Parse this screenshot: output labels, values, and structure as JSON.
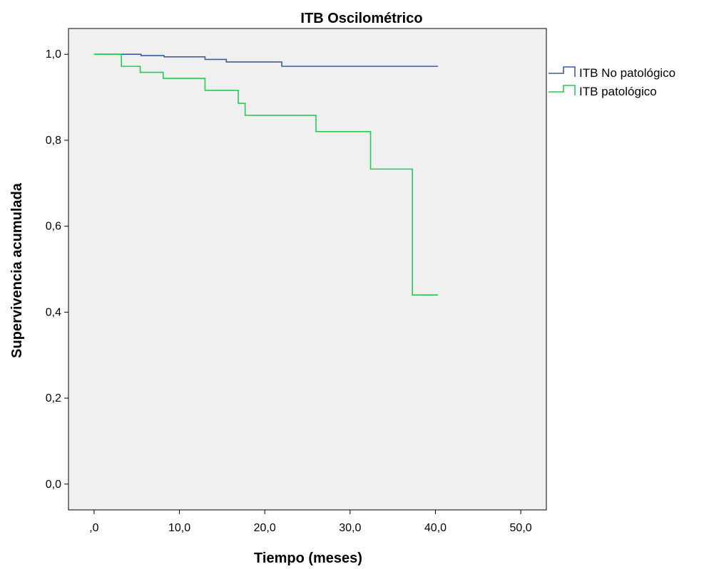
{
  "chart_data": {
    "type": "line",
    "step": true,
    "title": "ITB Oscilométrico",
    "xlabel": "Tiempo (meses)",
    "ylabel": "Supervivencia acumulada",
    "xlim": [
      -3,
      53
    ],
    "ylim": [
      -0.06,
      1.06
    ],
    "xticks": [
      0,
      10,
      20,
      30,
      40,
      50
    ],
    "xtick_labels": [
      ",0",
      "10,0",
      "20,0",
      "30,0",
      "40,0",
      "50,0"
    ],
    "yticks": [
      0,
      0.2,
      0.4,
      0.6,
      0.8,
      1.0
    ],
    "ytick_labels": [
      "0,0",
      "0,2",
      "0,4",
      "0,6",
      "0,8",
      "1,0"
    ],
    "grid": false,
    "legend_position": "right",
    "plot_background": "#f0f0f0",
    "series": [
      {
        "name": "ITB No patológico",
        "color": "#3a5ba8",
        "x": [
          0,
          5.5,
          8.2,
          13.0,
          15.5,
          22.0,
          40.3
        ],
        "y": [
          1.0,
          0.997,
          0.994,
          0.988,
          0.982,
          0.972,
          0.972
        ]
      },
      {
        "name": "ITB patológico",
        "color": "#22cc55",
        "x": [
          0,
          3.2,
          5.4,
          8.1,
          13.0,
          16.9,
          17.7,
          26.0,
          32.4,
          37.3,
          40.3
        ],
        "y": [
          1.0,
          0.972,
          0.958,
          0.944,
          0.916,
          0.886,
          0.858,
          0.82,
          0.733,
          0.44,
          0.44
        ]
      }
    ]
  }
}
